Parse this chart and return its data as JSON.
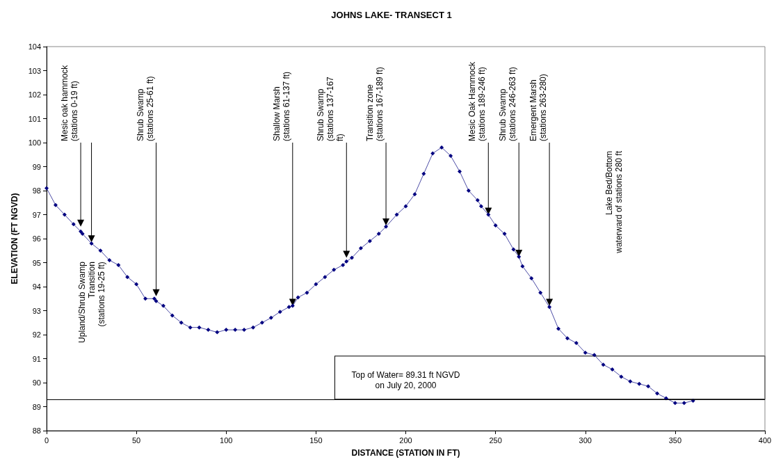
{
  "chart_data": {
    "type": "line",
    "title": "JOHNS LAKE- TRANSECT 1",
    "xlabel": "DISTANCE (STATION IN FT)",
    "ylabel": "ELEVATION (FT NGVD)",
    "x": [
      0,
      5,
      10,
      15,
      19,
      20,
      25,
      30,
      35,
      40,
      45,
      50,
      55,
      60,
      61,
      65,
      70,
      75,
      80,
      85,
      90,
      95,
      100,
      105,
      110,
      115,
      120,
      125,
      130,
      135,
      137,
      140,
      145,
      150,
      155,
      160,
      165,
      167,
      170,
      175,
      180,
      185,
      189,
      195,
      200,
      205,
      210,
      215,
      220,
      225,
      230,
      235,
      240,
      242,
      246,
      250,
      255,
      260,
      263,
      265,
      270,
      275,
      280,
      285,
      290,
      295,
      300,
      305,
      310,
      315,
      320,
      325,
      330,
      335,
      340,
      345,
      350,
      355,
      360
    ],
    "series": [
      {
        "color": "#000080",
        "values": [
          98.1,
          97.4,
          97.0,
          96.6,
          96.3,
          96.2,
          95.8,
          95.5,
          95.1,
          94.9,
          94.4,
          94.1,
          93.5,
          93.5,
          93.4,
          93.2,
          92.8,
          92.5,
          92.3,
          92.3,
          92.2,
          92.1,
          92.2,
          92.2,
          92.2,
          92.3,
          92.5,
          92.7,
          92.95,
          93.15,
          93.2,
          93.55,
          93.75,
          94.1,
          94.4,
          94.7,
          94.9,
          95.05,
          95.2,
          95.6,
          95.9,
          96.2,
          96.5,
          97.0,
          97.35,
          97.85,
          98.7,
          99.55,
          99.8,
          99.45,
          98.8,
          98.0,
          97.6,
          97.35,
          97.0,
          96.55,
          96.2,
          95.55,
          95.25,
          94.85,
          94.35,
          93.75,
          93.15,
          92.25,
          91.85,
          91.65,
          91.25,
          91.15,
          90.75,
          90.55,
          90.25,
          90.05,
          89.95,
          89.85,
          89.55,
          89.35,
          89.15,
          89.15,
          89.25
        ]
      }
    ],
    "marker": "diamond",
    "line_style": "solid",
    "grid": false,
    "xlim": [
      0,
      400
    ],
    "xticks": [
      0,
      50,
      100,
      150,
      200,
      250,
      300,
      350,
      400
    ],
    "ylim": [
      88,
      104
    ],
    "yticks": [
      88,
      89,
      90,
      91,
      92,
      93,
      94,
      95,
      96,
      97,
      98,
      99,
      100,
      101,
      102,
      103,
      104
    ],
    "ref_lines": [
      {
        "axis": "y",
        "value": 89.31,
        "label": "Top of Water= 89.31 ft NGVD\non July 20, 2000",
        "color": "#000000"
      }
    ],
    "annotations": [
      {
        "text": "Mesic oak hammock\n(stations 0-19 ft)",
        "x": 19,
        "y": 96.5
      },
      {
        "text": "Upland/Shrub Swamp\nTransition\n(stations 19-25 ft)",
        "x": 25,
        "y": 95.85
      },
      {
        "text": "Shrub Swamp\n(stations 25-61 ft)",
        "x": 61,
        "y": 93.6
      },
      {
        "text": "Shallow Marsh\n(stations 61-137 ft)",
        "x": 137,
        "y": 93.2
      },
      {
        "text": "Shrub Swamp\n(stations 137-167\nft)",
        "x": 167,
        "y": 95.2
      },
      {
        "text": "Transition zone\n(stations 167-189 ft)",
        "x": 189,
        "y": 96.55
      },
      {
        "text": "Mesic Oak Hammock\n(stations 189-246 ft)",
        "x": 246,
        "y": 97.0
      },
      {
        "text": "Shrub Swamp\n(stations 246-263 ft)",
        "x": 263,
        "y": 95.25
      },
      {
        "text": "Emergent Marsh\n(stations 263-280)",
        "x": 280,
        "y": 93.2
      },
      "Lake Bed/Bottom\nwaterward of stations 280 ft"
    ]
  }
}
